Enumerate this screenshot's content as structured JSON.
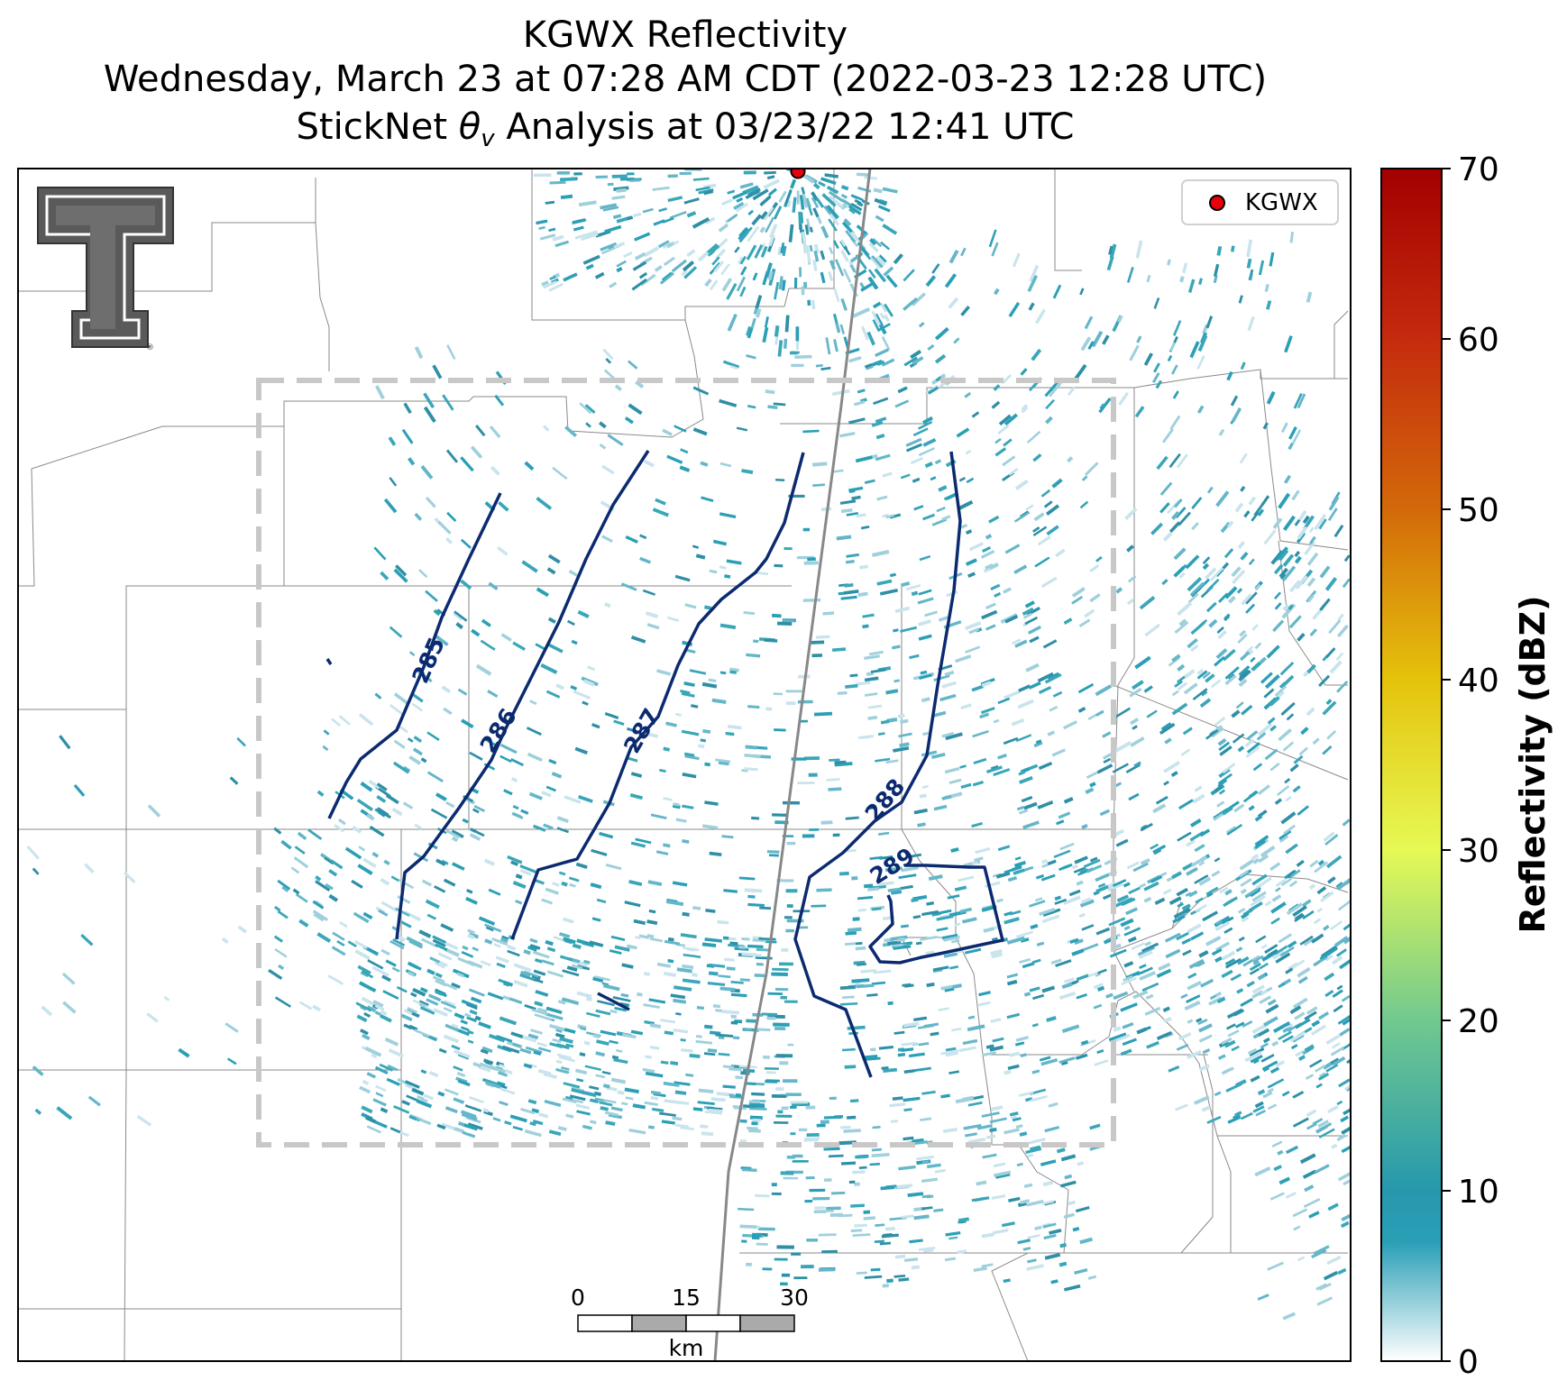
{
  "title": {
    "line1": "KGWX Reflectivity",
    "line2": "Wednesday, March 23 at 07:28 AM CDT (2022-03-23 12:28 UTC)",
    "line3_prefix": "StickNet ",
    "line3_symbol": "θ",
    "line3_subscript": "v",
    "line3_suffix": " Analysis at 03/23/22 12:41 UTC"
  },
  "legend": {
    "label": "KGWX",
    "marker_color": "#e8000b"
  },
  "colorbar": {
    "label": "Reflectivity (dBZ)",
    "ticks": [
      "0",
      "10",
      "20",
      "30",
      "40",
      "50",
      "60",
      "70"
    ],
    "min": 0,
    "max": 70,
    "stops": [
      {
        "v": 0,
        "c": "#ffffff"
      },
      {
        "v": 7,
        "c": "#2a9fb6"
      },
      {
        "v": 10,
        "c": "#2698ad"
      },
      {
        "v": 20,
        "c": "#71c98f"
      },
      {
        "v": 30,
        "c": "#e6f955"
      },
      {
        "v": 40,
        "c": "#e5c30c"
      },
      {
        "v": 50,
        "c": "#d3690a"
      },
      {
        "v": 60,
        "c": "#c52b0e"
      },
      {
        "v": 70,
        "c": "#a30000"
      }
    ]
  },
  "contour_labels": [
    "285",
    "286",
    "287",
    "288",
    "289"
  ],
  "scalebar": {
    "ticks": [
      "0",
      "15",
      "30"
    ],
    "unit": "km"
  },
  "colors": {
    "contour": "#0b2a6f",
    "county_line": "#8a8a8a",
    "analysis_box": "#c8c8c8",
    "radar_echo": "#2a9fb6"
  },
  "logo": {
    "name": "texas-tech-double-t-logo"
  }
}
